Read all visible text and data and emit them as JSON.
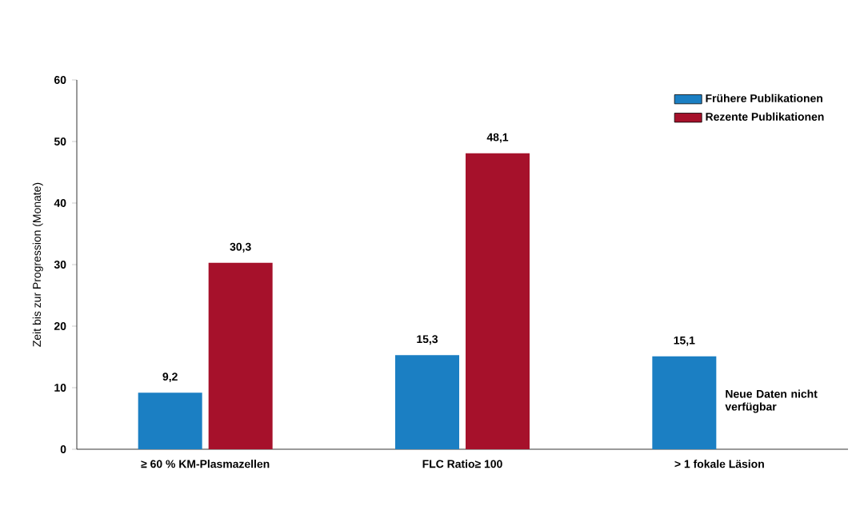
{
  "chart_data": {
    "type": "bar",
    "ylabel": "Zeit bis zur Progression (Monate)",
    "categories": [
      "≥ 60 % KM-Plasmazellen",
      "FLC Ratio≥ 100",
      "> 1 fokale Läsion"
    ],
    "series": [
      {
        "name": "Frühere Publikationen",
        "color": "#1b7fc3",
        "values": [
          9.2,
          15.3,
          15.1
        ],
        "value_labels": [
          "9,2",
          "15,3",
          "15,1"
        ]
      },
      {
        "name": "Rezente Publikationen",
        "color": "#a6112b",
        "values": [
          30.3,
          48.1,
          null
        ],
        "value_labels": [
          "30,3",
          "48,1",
          null
        ]
      }
    ],
    "ylim": [
      0,
      60
    ],
    "yticks": [
      0,
      10,
      20,
      30,
      40,
      50,
      60
    ],
    "grid": false,
    "legend": "top right",
    "annotations": [
      "Neue Daten nicht verfügbar"
    ]
  }
}
